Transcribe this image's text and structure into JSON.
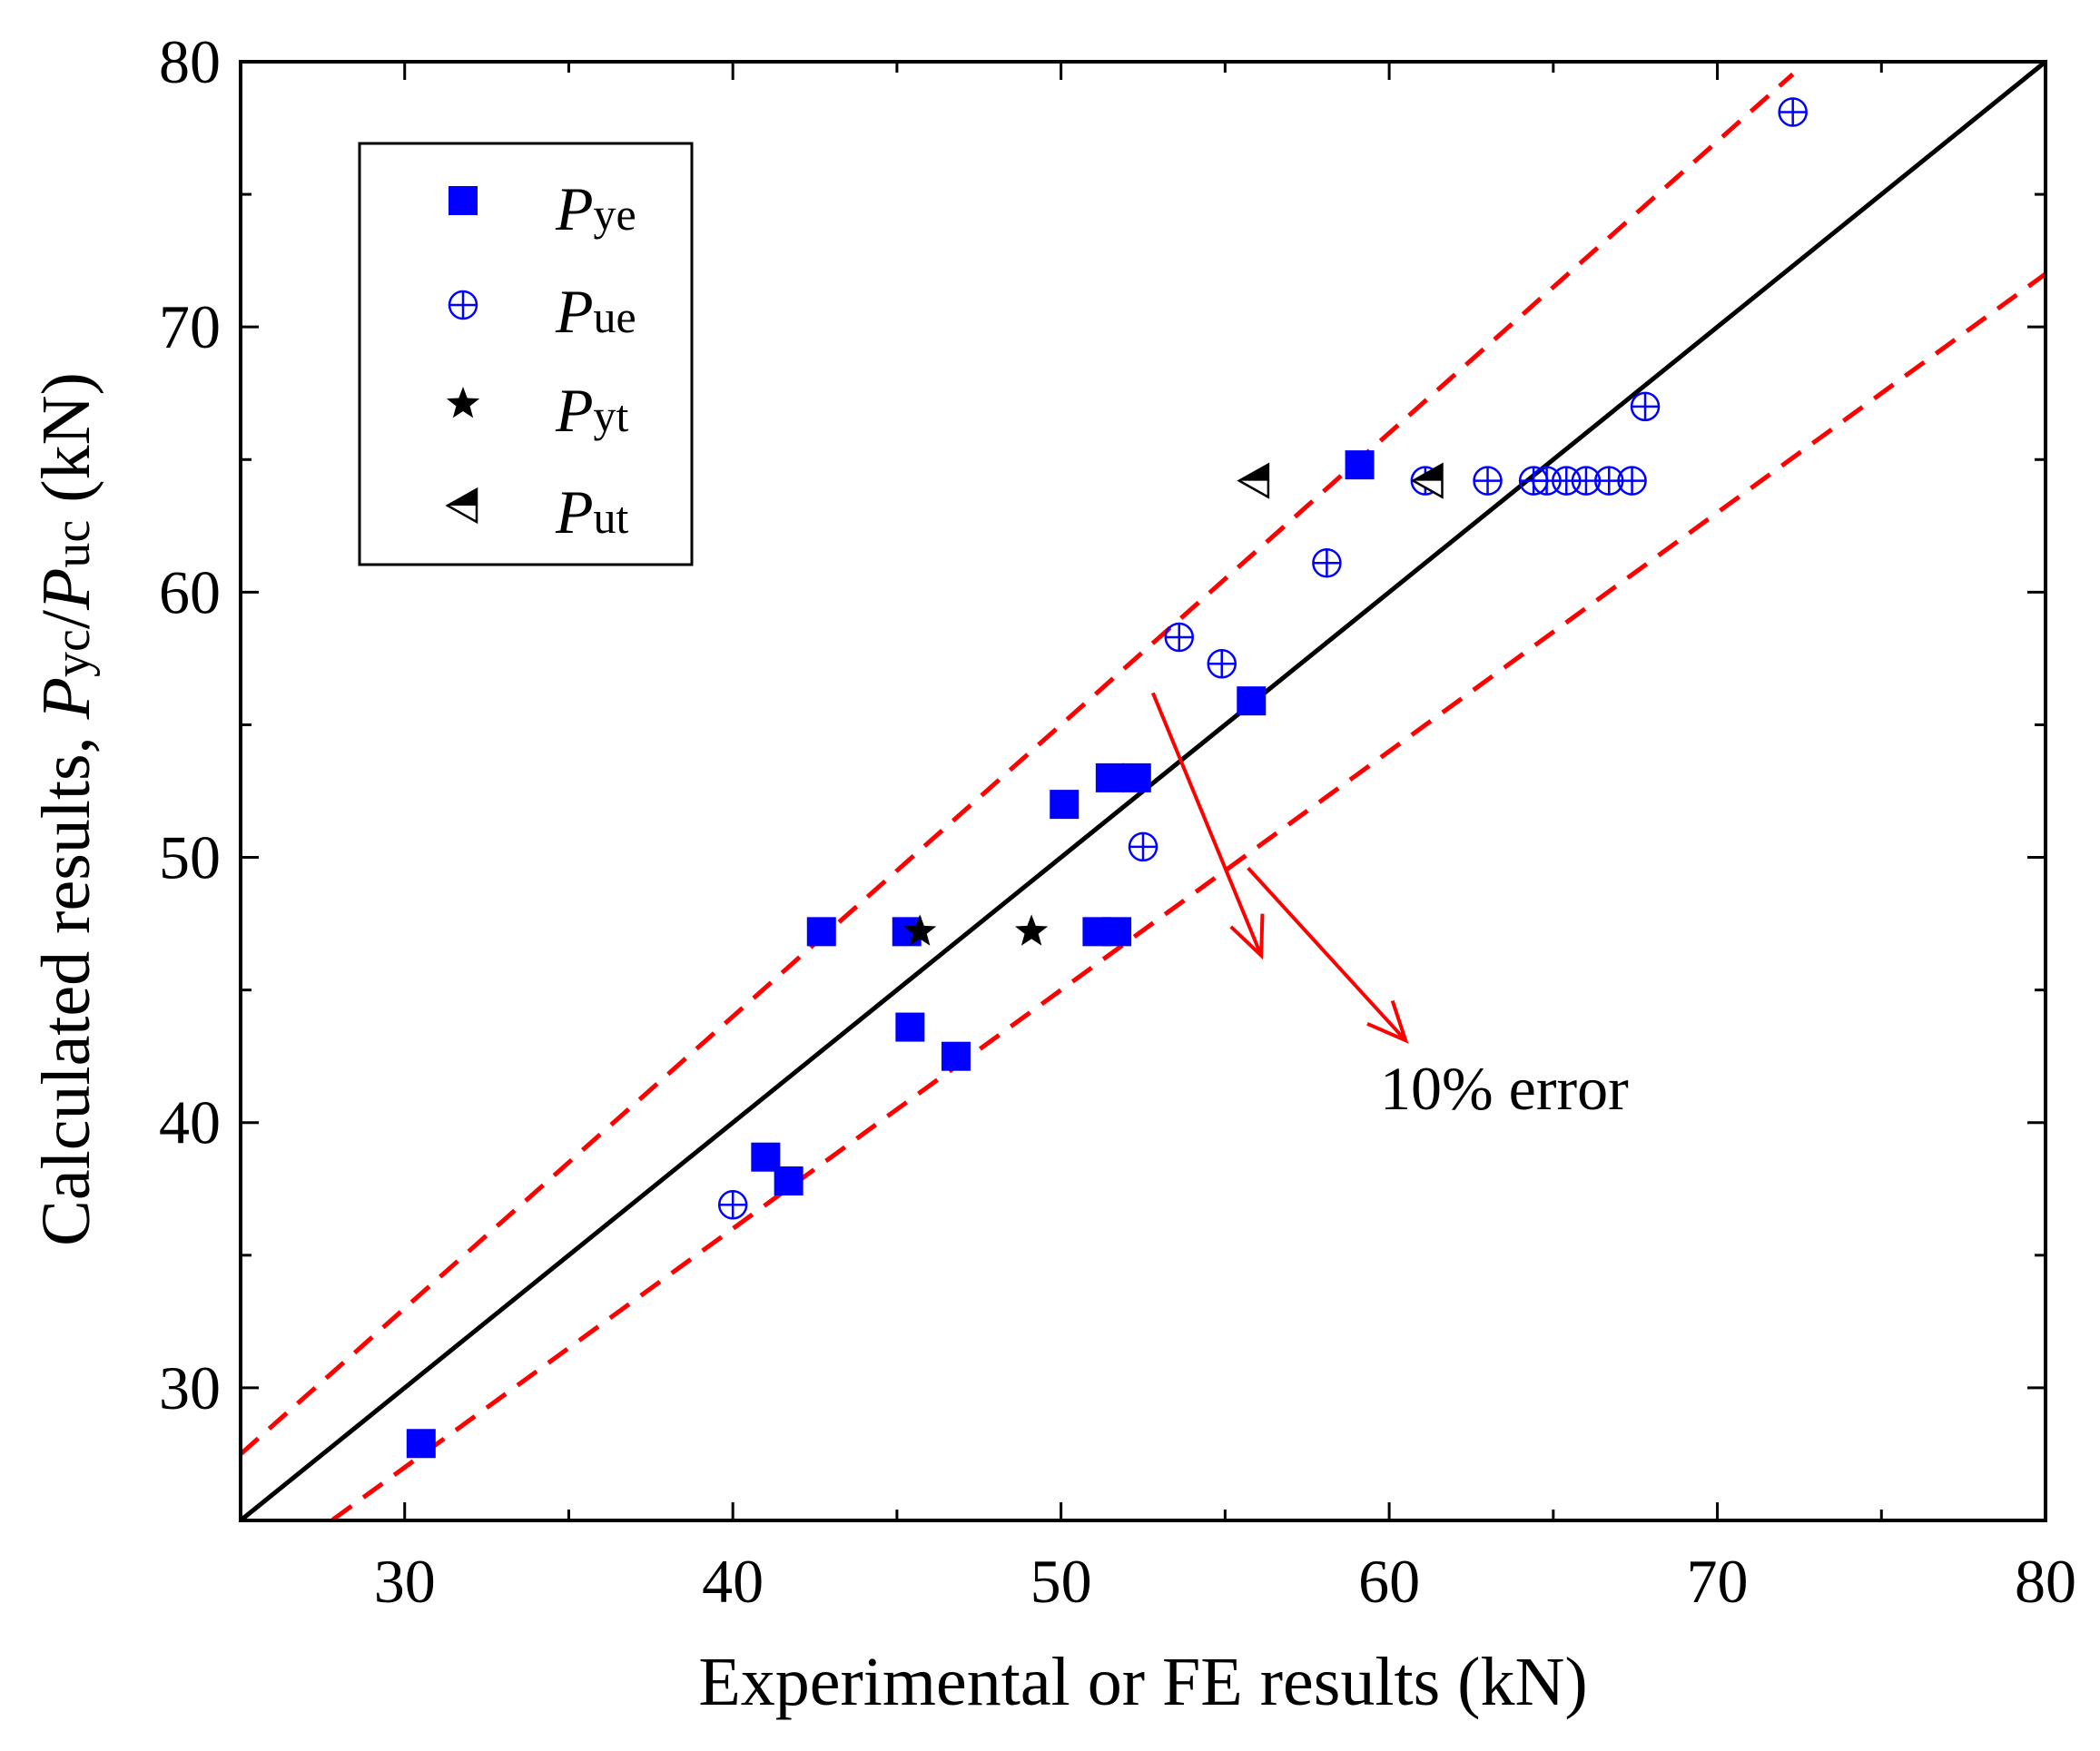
{
  "chart_data": {
    "type": "scatter",
    "xlabel": "Experimental or FE results (kN)",
    "ylabel": {
      "prefix": "Calculated results, ",
      "p1": "P",
      "s1": "yc",
      "slash": "/",
      "p2": "P",
      "s2": "uc",
      "suffix": " (kN)"
    },
    "xlim": [
      25,
      80
    ],
    "ylim": [
      25,
      80
    ],
    "xticks": [
      "30",
      "40",
      "50",
      "60",
      "70",
      "80"
    ],
    "yticks": [
      "30",
      "40",
      "50",
      "60",
      "70",
      "80"
    ],
    "grid": false,
    "legend_position": "top-left",
    "series": [
      {
        "name": "Pye",
        "symbol": "P",
        "subscript": "ye",
        "marker": "filled-square",
        "color": "#0000FF",
        "points": [
          [
            30.5,
            27.9
          ],
          [
            42.7,
            47.2
          ],
          [
            45.3,
            47.2
          ],
          [
            45.4,
            43.6
          ],
          [
            46.8,
            42.5
          ],
          [
            41.0,
            38.7
          ],
          [
            41.7,
            37.8
          ],
          [
            50.1,
            52.0
          ],
          [
            51.5,
            53.0
          ],
          [
            52.3,
            53.0
          ],
          [
            51.1,
            47.2
          ],
          [
            51.7,
            47.2
          ],
          [
            55.8,
            55.9
          ],
          [
            59.1,
            64.8
          ]
        ]
      },
      {
        "name": "Pue",
        "symbol": "P",
        "subscript": "ue",
        "marker": "crossed-circle",
        "color": "#0000FF",
        "points": [
          [
            40.0,
            36.9
          ],
          [
            52.5,
            50.4
          ],
          [
            53.6,
            58.3
          ],
          [
            54.9,
            57.3
          ],
          [
            58.1,
            61.1
          ],
          [
            61.1,
            64.2
          ],
          [
            63.0,
            64.2
          ],
          [
            64.4,
            64.2
          ],
          [
            64.8,
            64.2
          ],
          [
            65.4,
            64.2
          ],
          [
            66.0,
            64.2
          ],
          [
            66.7,
            64.2
          ],
          [
            67.4,
            64.2
          ],
          [
            67.8,
            67.0
          ],
          [
            72.3,
            78.1
          ]
        ]
      },
      {
        "name": "Pyt",
        "symbol": "P",
        "subscript": "yt",
        "marker": "star",
        "color": "#000000",
        "points": [
          [
            45.7,
            47.2
          ],
          [
            49.1,
            47.2
          ]
        ]
      },
      {
        "name": "Put",
        "symbol": "P",
        "subscript": "ut",
        "marker": "half-filled-left-triangle",
        "color": "#000000",
        "points": [
          [
            55.9,
            64.2
          ],
          [
            61.2,
            64.2
          ]
        ]
      }
    ],
    "reference_lines": [
      {
        "name": "y = x",
        "style": "solid",
        "color": "#000000",
        "slope": 1.0
      },
      {
        "name": "+10%",
        "style": "dashed",
        "color": "#FF0000",
        "slope": 1.1
      },
      {
        "name": "-10%",
        "style": "dashed",
        "color": "#FF0000",
        "slope": 0.9
      }
    ],
    "annotation": {
      "text": "10% error",
      "color": "#FF0000",
      "arrows": [
        {
          "from": [
            52.8,
            56.2
          ],
          "to": [
            56.1,
            46.3
          ]
        },
        {
          "from": [
            55.7,
            49.6
          ],
          "to": [
            60.5,
            43.1
          ]
        }
      ]
    }
  }
}
